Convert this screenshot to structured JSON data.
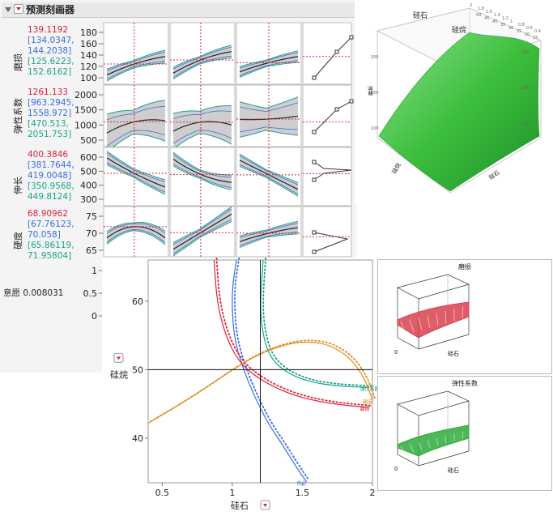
{
  "header": {
    "title": "预测刻画器"
  },
  "profiler": {
    "rows": [
      {
        "name": "磨损",
        "current": "139.1192",
        "ci": [
          "[134.0347,",
          "144.2038]"
        ],
        "pi": [
          "[125.6223,",
          "152.6162]"
        ],
        "ticks": [
          "180",
          "160",
          "140",
          "120",
          "100"
        ]
      },
      {
        "name": "弹性系数",
        "current": "1261.133",
        "ci": [
          "[963.2945,",
          "1558.972]"
        ],
        "pi": [
          "[470.513,",
          "2051.753]"
        ],
        "ticks": [
          "2000",
          "1500",
          "1000",
          "500"
        ]
      },
      {
        "name": "伸长",
        "current": "400.3846",
        "ci": [
          "[381.7644,",
          "419.0048]"
        ],
        "pi": [
          "[350.9568,",
          "449.8124]"
        ],
        "ticks": [
          "600",
          "500",
          "400",
          "300"
        ]
      },
      {
        "name": "硬度",
        "current": "68.90962",
        "ci": [
          "[67.76123,",
          "70.058]"
        ],
        "pi": [
          "[65.86119,",
          "71.95804]"
        ],
        "ticks": [
          "75",
          "70",
          "65"
        ]
      }
    ],
    "desirability": {
      "label": "意愿",
      "value": "0.008031",
      "ticks": [
        "1",
        "0.5",
        "0"
      ]
    }
  },
  "surface": {
    "axis_labels": [
      "硅石",
      "硅烷",
      "磨损",
      "硅石"
    ],
    "ticks_top": [
      "2",
      "1.8",
      "1.6",
      "1.4",
      "1.2",
      "1",
      "0.8",
      "0.6",
      "0.4"
    ],
    "ticks_right": [
      "50",
      "45",
      "40",
      "35",
      "30",
      "25",
      "20",
      "15"
    ],
    "z_ticks": [
      "200",
      "150",
      "100"
    ],
    "color": "#3cbf3c"
  },
  "chart_data": [
    {
      "type": "line",
      "title": "",
      "xlabel": "硅石",
      "ylabel": "硅烷",
      "xlim": [
        0.4,
        2.0
      ],
      "ylim": [
        33.5,
        66
      ],
      "x_ticks": [
        0.5,
        1,
        1.5,
        2
      ],
      "y_ticks": [
        40,
        50,
        60
      ],
      "crosshair": {
        "x": 1.2,
        "y": 50
      },
      "series": [
        {
          "name": "伸长",
          "color": "#3a6fe0",
          "points": [
            [
              1.03,
              66
            ],
            [
              1.0,
              62
            ],
            [
              1.0,
              58
            ],
            [
              1.02,
              54
            ],
            [
              1.08,
              50
            ],
            [
              1.16,
              46
            ],
            [
              1.26,
              42
            ],
            [
              1.36,
              39
            ],
            [
              1.45,
              36
            ],
            [
              1.53,
              33.6
            ]
          ]
        },
        {
          "name": "磨损",
          "color": "#e0213a",
          "points": [
            [
              0.87,
              66
            ],
            [
              0.89,
              60
            ],
            [
              0.95,
              55
            ],
            [
              1.05,
              51
            ],
            [
              1.2,
              48.5
            ],
            [
              1.4,
              46.5
            ],
            [
              1.6,
              45.4
            ],
            [
              1.8,
              44.8
            ],
            [
              1.98,
              44.5
            ]
          ]
        },
        {
          "name": "弹性系数",
          "color": "#1aa38a",
          "points": [
            [
              1.22,
              66
            ],
            [
              1.2,
              60
            ],
            [
              1.21,
              56
            ],
            [
              1.26,
              52
            ],
            [
              1.38,
              49.6
            ],
            [
              1.55,
              48.2
            ],
            [
              1.75,
              47.6
            ],
            [
              1.98,
              47.4
            ]
          ]
        },
        {
          "name": "硬度",
          "color": "#e08a1e",
          "points": [
            [
              0.4,
              42.2
            ],
            [
              0.6,
              44.6
            ],
            [
              0.8,
              47.2
            ],
            [
              1.0,
              50.0
            ],
            [
              1.2,
              52.4
            ],
            [
              1.4,
              53.8
            ],
            [
              1.55,
              54.1
            ],
            [
              1.7,
              53.6
            ],
            [
              1.85,
              51.6
            ],
            [
              1.95,
              48.5
            ],
            [
              2.0,
              45.5
            ]
          ]
        }
      ]
    }
  ],
  "minis": [
    {
      "title": "磨损",
      "xlabel": "硅石",
      "zero": "0",
      "color": "#d8414f"
    },
    {
      "title": "弹性系数",
      "xlabel": "硅石",
      "zero": "0",
      "color": "#2faa3d"
    }
  ]
}
